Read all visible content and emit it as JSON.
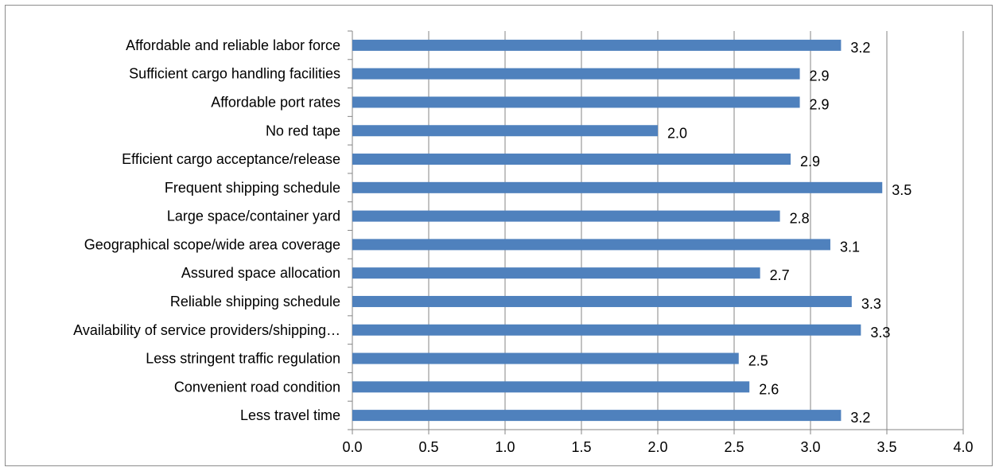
{
  "chart_data": {
    "type": "bar",
    "orientation": "horizontal",
    "categories": [
      "Affordable and reliable labor force",
      "Sufficient cargo handling facilities",
      "Affordable port rates",
      "No red tape",
      "Efficient cargo acceptance/release",
      "Frequent shipping schedule",
      "Large space/container yard",
      "Geographical scope/wide area coverage",
      "Assured space allocation",
      "Reliable shipping schedule",
      "Availability of service providers/shipping…",
      "Less stringent traffic regulation",
      "Convenient road condition",
      "Less travel time"
    ],
    "values": [
      3.2,
      2.93,
      2.93,
      2.0,
      2.87,
      3.47,
      2.8,
      3.13,
      2.67,
      3.27,
      3.33,
      2.53,
      2.6,
      3.2
    ],
    "data_labels": [
      "3.2",
      "2.9",
      "2.9",
      "2.0",
      "2.9",
      "3.5",
      "2.8",
      "3.1",
      "2.7",
      "3.3",
      "3.3",
      "2.5",
      "2.6",
      "3.2"
    ],
    "xlim": [
      0,
      4
    ],
    "x_ticks": [
      "0.0",
      "0.5",
      "1.0",
      "1.5",
      "2.0",
      "2.5",
      "3.0",
      "3.5",
      "4.0"
    ],
    "gridlines": "vertical",
    "legend": "none",
    "title": "",
    "xlabel": "",
    "ylabel": "",
    "bar_color": "#4f81bd",
    "grid_color": "#868686",
    "axis_color": "#868686"
  }
}
